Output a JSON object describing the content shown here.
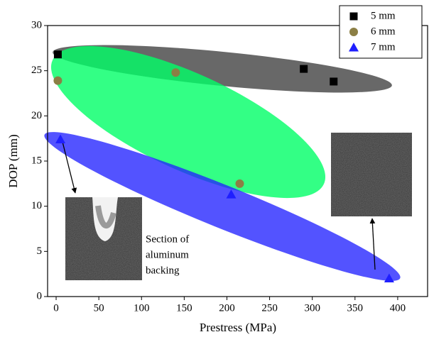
{
  "chart_data": {
    "type": "scatter",
    "xlabel": "Prestress (MPa)",
    "ylabel": "DOP (mm)",
    "xlim": [
      -10,
      435
    ],
    "ylim": [
      0,
      30
    ],
    "xticks": [
      0,
      50,
      100,
      150,
      200,
      250,
      300,
      350,
      400
    ],
    "yticks": [
      0,
      5,
      10,
      15,
      20,
      25,
      30
    ],
    "legend": "upper right",
    "annotation_lines": [
      "Section of",
      "aluminum",
      "backing"
    ],
    "series": [
      {
        "name": "5 mm",
        "color": "#000000",
        "marker": "square",
        "x": [
          2,
          290,
          325
        ],
        "values": [
          26.8,
          25.2,
          23.8
        ]
      },
      {
        "name": "6 mm",
        "color": "#8c7f45",
        "marker": "circle",
        "x": [
          2,
          140,
          215
        ],
        "values": [
          23.9,
          24.8,
          12.5
        ]
      },
      {
        "name": "7 mm",
        "color": "#1f1fff",
        "marker": "triangle",
        "x": [
          5,
          205,
          390
        ],
        "values": [
          17.4,
          11.3,
          2.0
        ]
      }
    ]
  }
}
